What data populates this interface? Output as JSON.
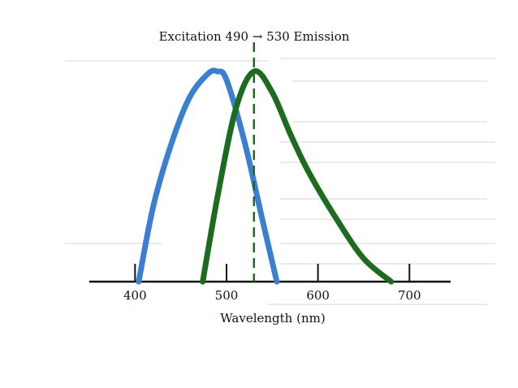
{
  "chart_data": {
    "type": "line",
    "title": "Excitation 490 → 530 Emission",
    "xlabel": "Wavelength (nm)",
    "ylabel": "",
    "xlim": [
      350,
      745
    ],
    "ylim": [
      0,
      1
    ],
    "x_ticks": [
      400,
      500,
      600,
      700
    ],
    "x_tick_labels": [
      "400",
      "500",
      "600",
      "700"
    ],
    "grid": false,
    "legend": "none",
    "series": [
      {
        "color": "#3a7fd0",
        "x": [
          404,
          420,
          440,
          460,
          480,
          490,
          500,
          520,
          540,
          555
        ],
        "y": [
          0.0,
          0.36,
          0.66,
          0.88,
          0.99,
          1.0,
          0.96,
          0.66,
          0.28,
          0.0
        ]
      },
      {
        "color": "#1c6b1e",
        "x": [
          474,
          490,
          510,
          530,
          550,
          570,
          590,
          620,
          650,
          680
        ],
        "y": [
          0.0,
          0.4,
          0.82,
          1.0,
          0.9,
          0.7,
          0.52,
          0.3,
          0.11,
          0.0
        ]
      }
    ],
    "annotations": [
      {
        "type": "vline",
        "x": 530,
        "style": "dashed",
        "color": "#1c6b1e"
      }
    ]
  }
}
